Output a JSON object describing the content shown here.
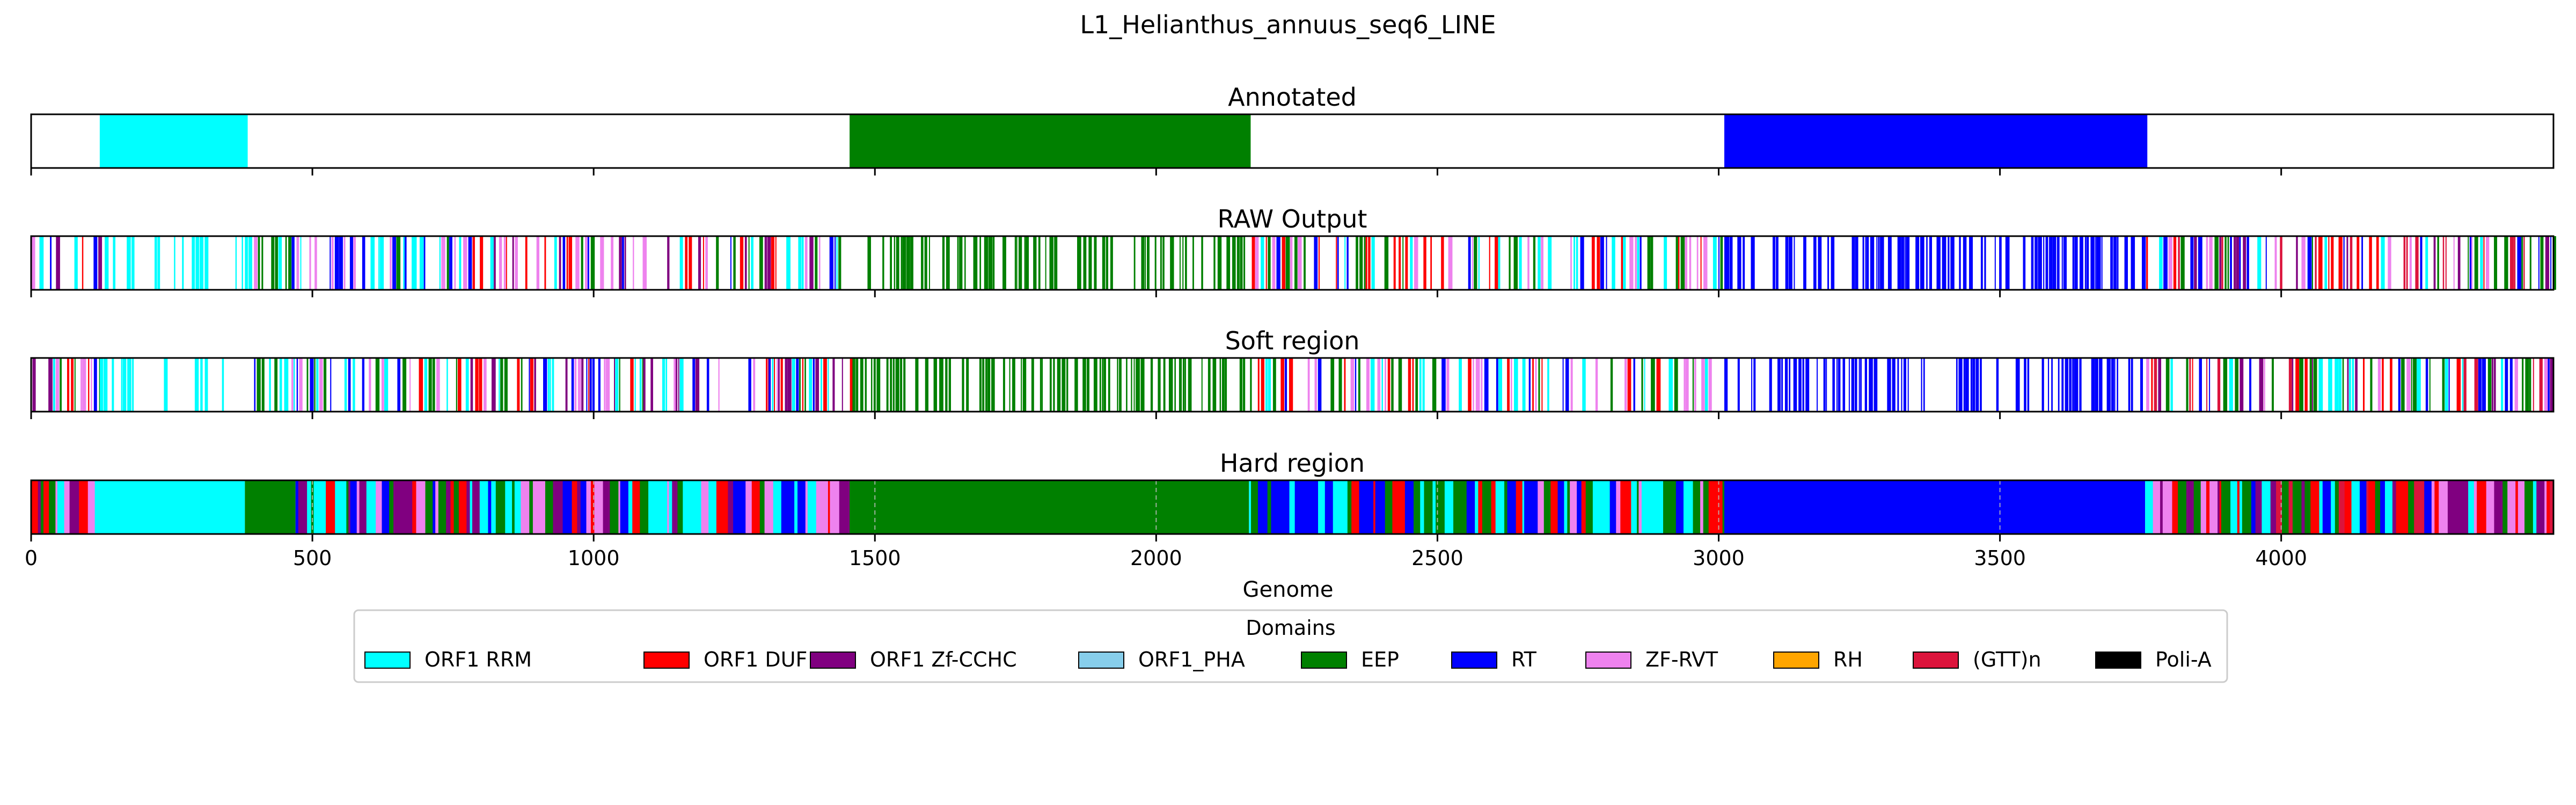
{
  "chart_data": {
    "type": "heatmap",
    "title": "L1_Helianthus_annuus_seq6_LINE",
    "xlabel": "Genome",
    "xlim": [
      0,
      4484
    ],
    "xticks": [
      0,
      500,
      1000,
      1500,
      2000,
      2500,
      3000,
      3500,
      4000
    ],
    "legend": {
      "title": "Domains",
      "placement": "bottom-center",
      "entries": [
        {
          "label": "ORF1 RRM",
          "color": "#00ffff"
        },
        {
          "label": "ORF1 DUF",
          "color": "#ff0000"
        },
        {
          "label": "ORF1 Zf-CCHC",
          "color": "#800080"
        },
        {
          "label": "ORF1_PHA",
          "color": "#87ceeb"
        },
        {
          "label": "EEP",
          "color": "#008000"
        },
        {
          "label": "RT",
          "color": "#0000ff"
        },
        {
          "label": "ZF-RVT",
          "color": "#ee82ee"
        },
        {
          "label": "RH",
          "color": "#ffa500"
        },
        {
          "label": "(GTT)n",
          "color": "#dc143c"
        },
        {
          "label": "Poli-A",
          "color": "#000000"
        }
      ]
    },
    "tracks": [
      {
        "name": "Annotated",
        "kind": "segments",
        "segments": [
          {
            "start": 122,
            "end": 385,
            "domain": "ORF1 RRM"
          },
          {
            "start": 1455,
            "end": 2168,
            "domain": "EEP"
          },
          {
            "start": 3010,
            "end": 3762,
            "domain": "RT"
          }
        ]
      },
      {
        "name": "RAW Output",
        "kind": "stripes",
        "background": "#ffffff",
        "regions": [
          {
            "start": 0,
            "end": 122,
            "mix": [
              "RT",
              "EEP",
              "ORF1 RRM",
              "ZF-RVT",
              "ORF1 DUF",
              "ORF1 Zf-CCHC"
            ],
            "fill": 0.55
          },
          {
            "start": 122,
            "end": 380,
            "mix": [
              "ORF1 RRM"
            ],
            "fill": 0.35
          },
          {
            "start": 380,
            "end": 680,
            "mix": [
              "EEP",
              "RT",
              "ORF1 RRM",
              "ZF-RVT"
            ],
            "fill": 0.6
          },
          {
            "start": 680,
            "end": 1460,
            "mix": [
              "RT",
              "ORF1 RRM",
              "EEP",
              "ZF-RVT",
              "ORF1 DUF",
              "ORF1 Zf-CCHC"
            ],
            "fill": 0.6
          },
          {
            "start": 1460,
            "end": 2170,
            "mix": [
              "EEP"
            ],
            "fill": 0.6
          },
          {
            "start": 2170,
            "end": 3010,
            "mix": [
              "RT",
              "EEP",
              "ORF1 RRM",
              "ZF-RVT",
              "ORF1 DUF"
            ],
            "fill": 0.6
          },
          {
            "start": 3010,
            "end": 3760,
            "mix": [
              "RT"
            ],
            "fill": 0.6
          },
          {
            "start": 3760,
            "end": 4484,
            "mix": [
              "EEP",
              "RT",
              "ORF1 RRM",
              "ZF-RVT",
              "ORF1 DUF",
              "ORF1 Zf-CCHC",
              "(GTT)n"
            ],
            "fill": 0.7
          }
        ]
      },
      {
        "name": "Soft region",
        "kind": "stripes",
        "background": "#ffffff",
        "regions": [
          {
            "start": 0,
            "end": 122,
            "mix": [
              "RT",
              "EEP",
              "ORF1 RRM",
              "ZF-RVT",
              "ORF1 DUF",
              "ORF1 Zf-CCHC"
            ],
            "fill": 0.55
          },
          {
            "start": 122,
            "end": 380,
            "mix": [
              "ORF1 RRM"
            ],
            "fill": 0.35
          },
          {
            "start": 380,
            "end": 680,
            "mix": [
              "EEP",
              "RT",
              "ORF1 RRM",
              "ZF-RVT"
            ],
            "fill": 0.6
          },
          {
            "start": 680,
            "end": 1460,
            "mix": [
              "RT",
              "ORF1 RRM",
              "EEP",
              "ZF-RVT",
              "ORF1 DUF",
              "ORF1 Zf-CCHC"
            ],
            "fill": 0.6
          },
          {
            "start": 1460,
            "end": 2170,
            "mix": [
              "EEP"
            ],
            "fill": 0.6
          },
          {
            "start": 2170,
            "end": 3010,
            "mix": [
              "RT",
              "EEP",
              "ORF1 RRM",
              "ZF-RVT",
              "ORF1 DUF"
            ],
            "fill": 0.6
          },
          {
            "start": 3010,
            "end": 3760,
            "mix": [
              "RT"
            ],
            "fill": 0.6
          },
          {
            "start": 3760,
            "end": 4484,
            "mix": [
              "EEP",
              "RT",
              "ORF1 RRM",
              "ZF-RVT",
              "ORF1 DUF",
              "ORF1 Zf-CCHC",
              "(GTT)n"
            ],
            "fill": 0.7
          }
        ]
      },
      {
        "name": "Hard region",
        "kind": "segments",
        "dashed_gridlines": true,
        "segments": [
          {
            "start": 0,
            "end": 115,
            "mix": [
              "RT",
              "EEP",
              "ZF-RVT",
              "ORF1 DUF",
              "ORF1 Zf-CCHC",
              "ORF1 RRM"
            ]
          },
          {
            "start": 115,
            "end": 380,
            "domain": "ORF1 RRM"
          },
          {
            "start": 380,
            "end": 470,
            "domain": "EEP"
          },
          {
            "start": 470,
            "end": 1455,
            "mix": [
              "RT",
              "EEP",
              "ORF1 RRM",
              "ZF-RVT",
              "ORF1 DUF",
              "ORF1 Zf-CCHC"
            ]
          },
          {
            "start": 1455,
            "end": 2165,
            "domain": "EEP"
          },
          {
            "start": 2165,
            "end": 2300,
            "mix": [
              "RT",
              "ORF1 RRM",
              "EEP"
            ]
          },
          {
            "start": 2300,
            "end": 2580,
            "mix": [
              "RT",
              "EEP",
              "ORF1 RRM",
              "ORF1 DUF"
            ]
          },
          {
            "start": 2580,
            "end": 3010,
            "mix": [
              "RT",
              "EEP",
              "ZF-RVT",
              "ORF1 DUF",
              "ORF1 RRM"
            ]
          },
          {
            "start": 3010,
            "end": 3758,
            "domain": "RT"
          },
          {
            "start": 3758,
            "end": 4484,
            "mix": [
              "EEP",
              "RT",
              "ORF1 RRM",
              "ZF-RVT",
              "ORF1 DUF",
              "ORF1 Zf-CCHC",
              "(GTT)n"
            ]
          }
        ]
      }
    ]
  }
}
